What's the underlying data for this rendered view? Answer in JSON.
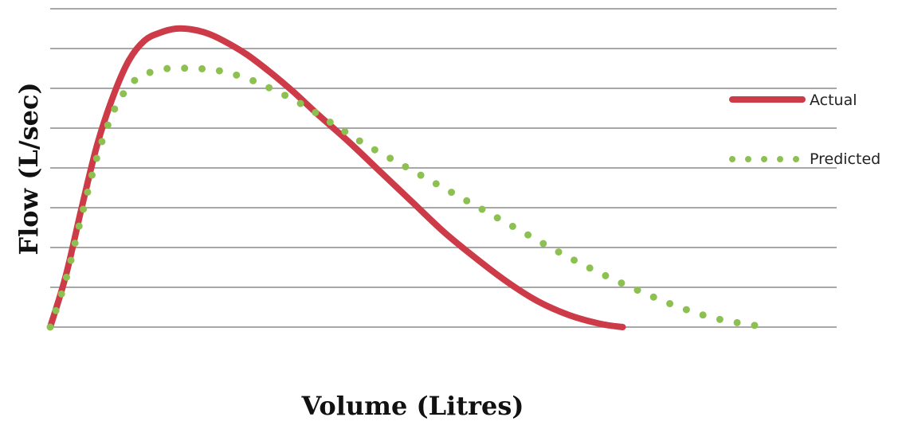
{
  "chart_data": {
    "type": "line",
    "xlabel": "Volume (Litres)",
    "ylabel": "Flow (L/sec)",
    "xlim": [
      0,
      10
    ],
    "ylim": [
      0,
      8
    ],
    "grid": true,
    "legend_position": "right",
    "series": [
      {
        "name": "Actual",
        "color": "#cc3b47",
        "style": "solid",
        "x": [
          0,
          0.2,
          0.4,
          0.6,
          0.8,
          1.0,
          1.2,
          1.4,
          1.6,
          1.8,
          2.0,
          2.2,
          2.5,
          2.8,
          3.1,
          3.4,
          3.8,
          4.2,
          4.6,
          5.0,
          5.4,
          5.8,
          6.2,
          6.6,
          7.0,
          7.28
        ],
        "y": [
          0,
          1.3,
          3.0,
          4.6,
          5.8,
          6.7,
          7.2,
          7.4,
          7.5,
          7.48,
          7.38,
          7.2,
          6.85,
          6.4,
          5.9,
          5.35,
          4.65,
          3.9,
          3.15,
          2.4,
          1.75,
          1.15,
          0.65,
          0.3,
          0.08,
          0
        ]
      },
      {
        "name": "Predicted",
        "color": "#8cc152",
        "style": "dotted",
        "x": [
          0,
          0.2,
          0.4,
          0.6,
          0.8,
          1.0,
          1.2,
          1.5,
          1.8,
          2.0,
          2.2,
          2.5,
          2.8,
          3.2,
          3.6,
          4.0,
          4.5,
          5.0,
          5.5,
          6.0,
          6.5,
          7.0,
          7.5,
          8.0,
          8.5,
          9.1
        ],
        "y": [
          0,
          1.2,
          2.8,
          4.3,
          5.4,
          6.05,
          6.35,
          6.5,
          6.5,
          6.48,
          6.42,
          6.25,
          6.0,
          5.6,
          5.1,
          4.6,
          4.05,
          3.5,
          2.95,
          2.4,
          1.85,
          1.35,
          0.9,
          0.5,
          0.2,
          0
        ]
      }
    ]
  }
}
